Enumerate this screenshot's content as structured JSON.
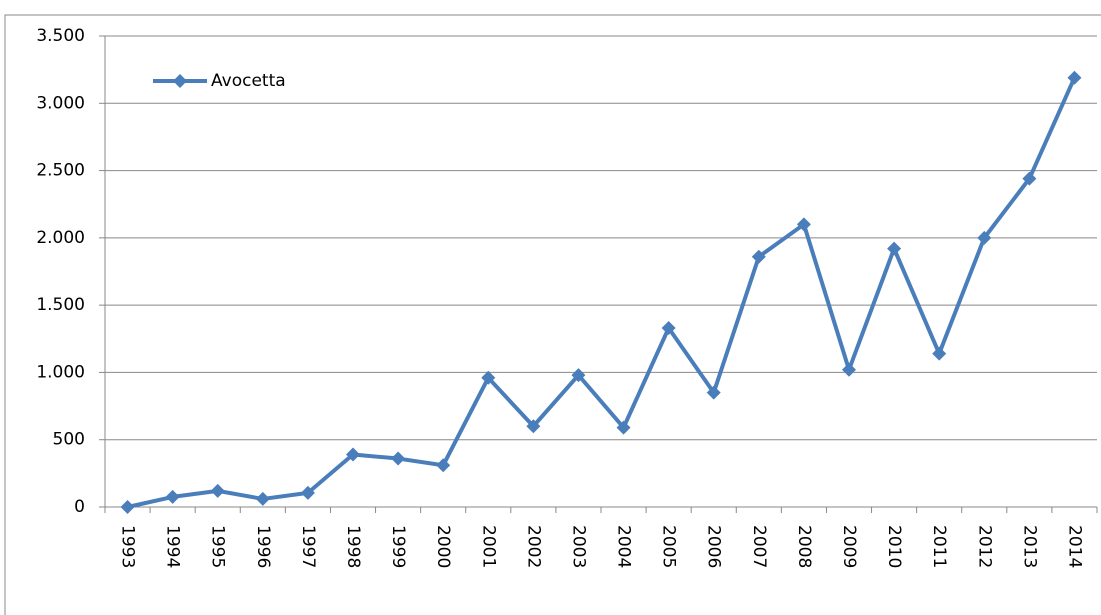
{
  "chart_data": {
    "type": "line",
    "categories": [
      "1993",
      "1994",
      "1995",
      "1996",
      "1997",
      "1998",
      "1999",
      "2000",
      "2001",
      "2002",
      "2003",
      "2004",
      "2005",
      "2006",
      "2007",
      "2008",
      "2009",
      "2010",
      "2011",
      "2012",
      "2013",
      "2014"
    ],
    "series": [
      {
        "name": "Avocetta",
        "color": "#4a7ebb",
        "values": [
          0,
          75,
          120,
          60,
          105,
          390,
          360,
          310,
          960,
          600,
          980,
          590,
          1330,
          850,
          1860,
          2100,
          1020,
          1920,
          1140,
          2000,
          2440,
          3190
        ]
      }
    ],
    "ylim": [
      0,
      3500
    ],
    "yticks": [
      0,
      500,
      {
        "value": 1000,
        "label": "1.000"
      },
      {
        "value": 1500,
        "label": "1.500"
      },
      {
        "value": 2000,
        "label": "2.000"
      },
      {
        "value": 2500,
        "label": "2.500"
      },
      {
        "value": 3000,
        "label": "3.000"
      },
      {
        "value": 3500,
        "label": "3.500"
      }
    ],
    "grid": true,
    "legend": "top-left"
  }
}
